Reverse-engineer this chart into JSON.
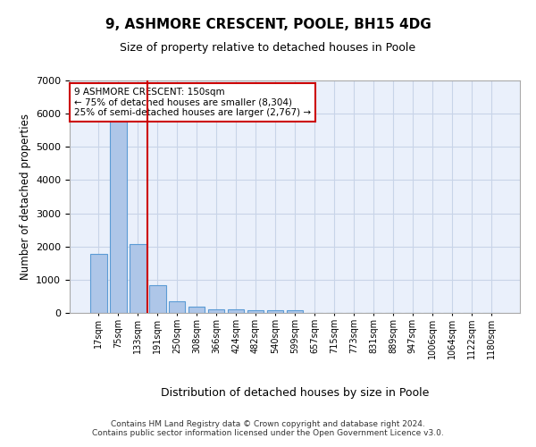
{
  "title1": "9, ASHMORE CRESCENT, POOLE, BH15 4DG",
  "title2": "Size of property relative to detached houses in Poole",
  "xlabel": "Distribution of detached houses by size in Poole",
  "ylabel": "Number of detached properties",
  "bar_labels": [
    "17sqm",
    "75sqm",
    "133sqm",
    "191sqm",
    "250sqm",
    "308sqm",
    "366sqm",
    "424sqm",
    "482sqm",
    "540sqm",
    "599sqm",
    "657sqm",
    "715sqm",
    "773sqm",
    "831sqm",
    "889sqm",
    "947sqm",
    "1006sqm",
    "1064sqm",
    "1122sqm",
    "1180sqm"
  ],
  "bar_values": [
    1780,
    5800,
    2060,
    830,
    340,
    185,
    120,
    110,
    90,
    75,
    70,
    0,
    0,
    0,
    0,
    0,
    0,
    0,
    0,
    0,
    0
  ],
  "bar_color": "#aec6e8",
  "bar_edge_color": "#5b9bd5",
  "annotation_line1": "9 ASHMORE CRESCENT: 150sqm",
  "annotation_line2": "← 75% of detached houses are smaller (8,304)",
  "annotation_line3": "25% of semi-detached houses are larger (2,767) →",
  "ylim": [
    0,
    7000
  ],
  "yticks": [
    0,
    1000,
    2000,
    3000,
    4000,
    5000,
    6000,
    7000
  ],
  "vline_color": "#cc0000",
  "vline_pos": 2.5,
  "bg_color": "#eaf0fb",
  "grid_color": "#c8d4e8",
  "footer1": "Contains HM Land Registry data © Crown copyright and database right 2024.",
  "footer2": "Contains public sector information licensed under the Open Government Licence v3.0."
}
